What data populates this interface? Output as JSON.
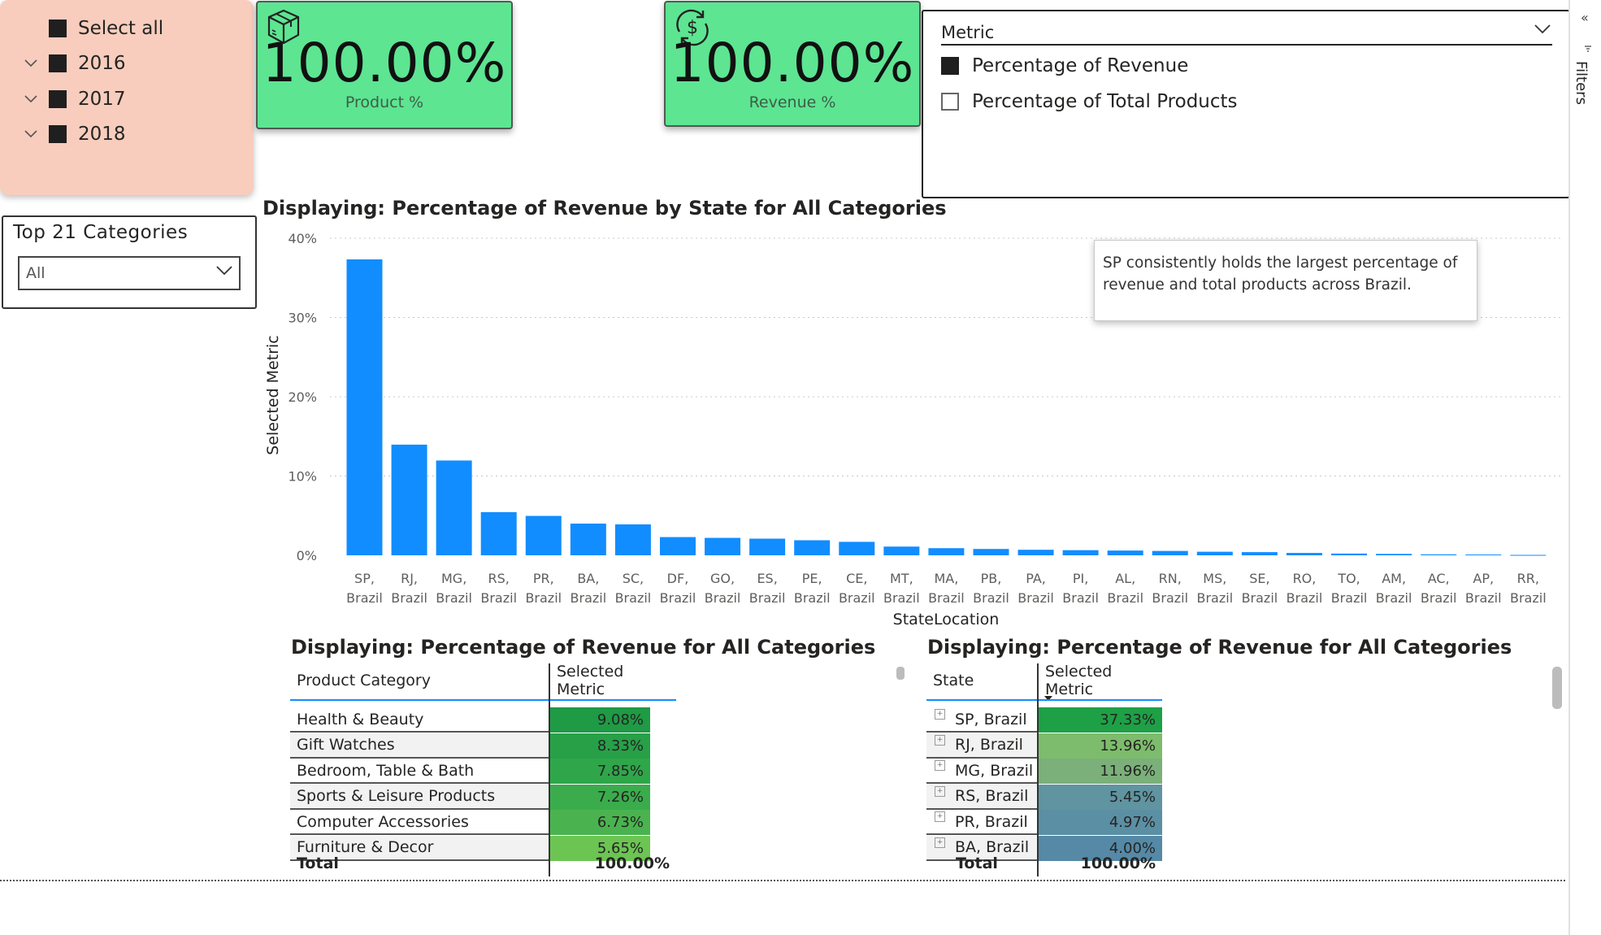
{
  "year_slicer": {
    "items": [
      {
        "label": "Select all",
        "checked": true,
        "expandable": false
      },
      {
        "label": "2016",
        "checked": true,
        "expandable": true
      },
      {
        "label": "2017",
        "checked": true,
        "expandable": true
      },
      {
        "label": "2018",
        "checked": true,
        "expandable": true
      }
    ],
    "background": "#f8cdbd"
  },
  "category_slicer": {
    "title": "Top 21 Categories",
    "selected": "All"
  },
  "kpi_product": {
    "value": "100.00%",
    "label": "Product %",
    "icon": "package-icon"
  },
  "kpi_revenue": {
    "value": "100.00%",
    "label": "Revenue %",
    "icon": "dollar-cycle-icon"
  },
  "kpi_color": "#5de592",
  "metric_slicer": {
    "title": "Metric",
    "options": [
      {
        "label": "Percentage of Revenue",
        "checked": true
      },
      {
        "label": "Percentage of Total Products",
        "checked": false
      }
    ]
  },
  "filters_pane": {
    "label": "Filters"
  },
  "chart_title": "Displaying: Percentage of Revenue by State for All Categories",
  "annotation": "SP consistently holds the largest percentage of revenue and total products across Brazil.",
  "chart_data": {
    "type": "bar",
    "title": "Displaying: Percentage of Revenue by State for All Categories",
    "xlabel": "StateLocation",
    "ylabel": "Selected Metric",
    "ylim": [
      0,
      40
    ],
    "yticks": [
      "0%",
      "10%",
      "20%",
      "30%",
      "40%"
    ],
    "grid": true,
    "bar_color": "#118dff",
    "categories": [
      [
        "SP,",
        "Brazil"
      ],
      [
        "RJ,",
        "Brazil"
      ],
      [
        "MG,",
        "Brazil"
      ],
      [
        "RS,",
        "Brazil"
      ],
      [
        "PR,",
        "Brazil"
      ],
      [
        "BA,",
        "Brazil"
      ],
      [
        "SC,",
        "Brazil"
      ],
      [
        "DF,",
        "Brazil"
      ],
      [
        "GO,",
        "Brazil"
      ],
      [
        "ES,",
        "Brazil"
      ],
      [
        "PE,",
        "Brazil"
      ],
      [
        "CE,",
        "Brazil"
      ],
      [
        "MT,",
        "Brazil"
      ],
      [
        "MA,",
        "Brazil"
      ],
      [
        "PB,",
        "Brazil"
      ],
      [
        "PA,",
        "Brazil"
      ],
      [
        "PI,",
        "Brazil"
      ],
      [
        "AL,",
        "Brazil"
      ],
      [
        "RN,",
        "Brazil"
      ],
      [
        "MS,",
        "Brazil"
      ],
      [
        "SE,",
        "Brazil"
      ],
      [
        "RO,",
        "Brazil"
      ],
      [
        "TO,",
        "Brazil"
      ],
      [
        "AM,",
        "Brazil"
      ],
      [
        "AC,",
        "Brazil"
      ],
      [
        "AP,",
        "Brazil"
      ],
      [
        "RR,",
        "Brazil"
      ]
    ],
    "values": [
      37.33,
      13.96,
      11.96,
      5.45,
      4.97,
      4.0,
      3.9,
      2.3,
      2.2,
      2.1,
      1.9,
      1.7,
      1.1,
      0.9,
      0.8,
      0.7,
      0.65,
      0.6,
      0.55,
      0.45,
      0.4,
      0.3,
      0.22,
      0.18,
      0.12,
      0.1,
      0.05
    ]
  },
  "category_table": {
    "title": "Displaying: Percentage of Revenue for All Categories",
    "headers": [
      "Product Category",
      "Selected Metric"
    ],
    "rows": [
      {
        "name": "Health & Beauty",
        "value": "9.08%",
        "color": "#1f9a45"
      },
      {
        "name": "Gift Watches",
        "value": "8.33%",
        "color": "#27a048"
      },
      {
        "name": "Bedroom, Table & Bath",
        "value": "7.85%",
        "color": "#2fa64a"
      },
      {
        "name": "Sports & Leisure Products",
        "value": "7.26%",
        "color": "#3aac4c"
      },
      {
        "name": "Computer Accessories",
        "value": "6.73%",
        "color": "#4ab34f"
      },
      {
        "name": "Furniture & Decor",
        "value": "5.65%",
        "color": "#6cc453"
      }
    ],
    "total_label": "Total",
    "total_value": "100.00%"
  },
  "state_table": {
    "title": "Displaying: Percentage of Revenue for All Categories",
    "headers": [
      "State",
      "Selected Metric"
    ],
    "rows": [
      {
        "name": "SP, Brazil",
        "value": "37.33%",
        "color": "#1ea046"
      },
      {
        "name": "RJ, Brazil",
        "value": "13.96%",
        "color": "#7dbc6c"
      },
      {
        "name": "MG, Brazil",
        "value": "11.96%",
        "color": "#7bb07a"
      },
      {
        "name": "RS, Brazil",
        "value": "5.45%",
        "color": "#5f94a0"
      },
      {
        "name": "PR, Brazil",
        "value": "4.97%",
        "color": "#5b8fa4"
      },
      {
        "name": "BA, Brazil",
        "value": "4.00%",
        "color": "#5589a6"
      }
    ],
    "total_label": "Total",
    "total_value": "100.00%"
  }
}
